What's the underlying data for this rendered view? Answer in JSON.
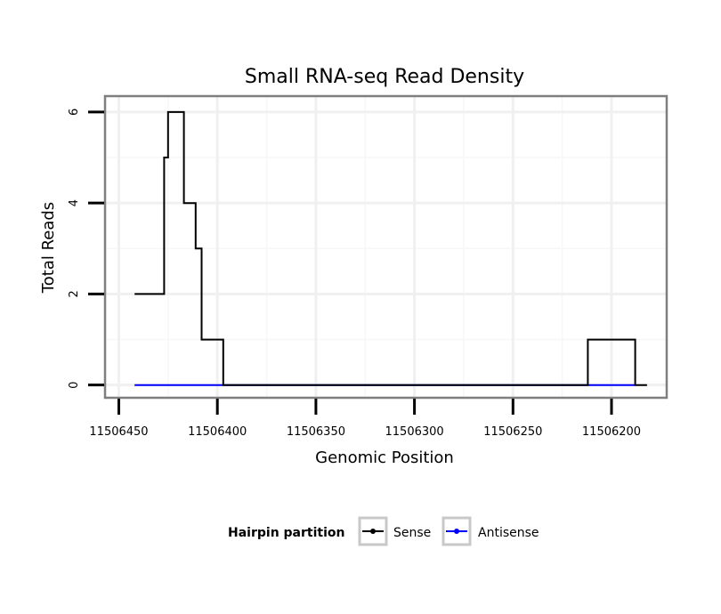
{
  "chart_data": {
    "type": "line",
    "title": "Small RNA-seq Read Density",
    "xlabel": "Genomic Position",
    "ylabel": "Total Reads",
    "x_reversed": true,
    "xlim": [
      11506457,
      11506172
    ],
    "ylim": [
      -0.28,
      6.35
    ],
    "x_ticks": [
      11506450,
      11506400,
      11506350,
      11506300,
      11506250,
      11506200
    ],
    "x_tick_labels": [
      "11506450",
      "11506400",
      "11506350",
      "11506300",
      "11506250",
      "11506200"
    ],
    "y_ticks": [
      0,
      2,
      4,
      6
    ],
    "y_tick_labels": [
      "0",
      "2",
      "4",
      "6"
    ],
    "grid": true,
    "legend": {
      "title": "Hairpin partition",
      "position": "bottom",
      "entries": [
        "Sense",
        "Antisense"
      ]
    },
    "series": [
      {
        "name": "Sense",
        "color": "#000000",
        "x": [
          11506442,
          11506427,
          11506427,
          11506425,
          11506425,
          11506423,
          11506423,
          11506417,
          11506417,
          11506411,
          11506411,
          11506408,
          11506408,
          11506405,
          11506405,
          11506397,
          11506397,
          11506212,
          11506212,
          11506188,
          11506188,
          11506182
        ],
        "y": [
          2,
          2,
          5,
          5,
          6,
          6,
          6,
          6,
          4,
          4,
          3,
          3,
          1,
          1,
          1,
          1,
          0,
          0,
          1,
          1,
          0,
          0
        ]
      },
      {
        "name": "Antisense",
        "color": "#0000ff",
        "x": [
          11506442,
          11506188
        ],
        "y": [
          0,
          0
        ]
      }
    ]
  }
}
